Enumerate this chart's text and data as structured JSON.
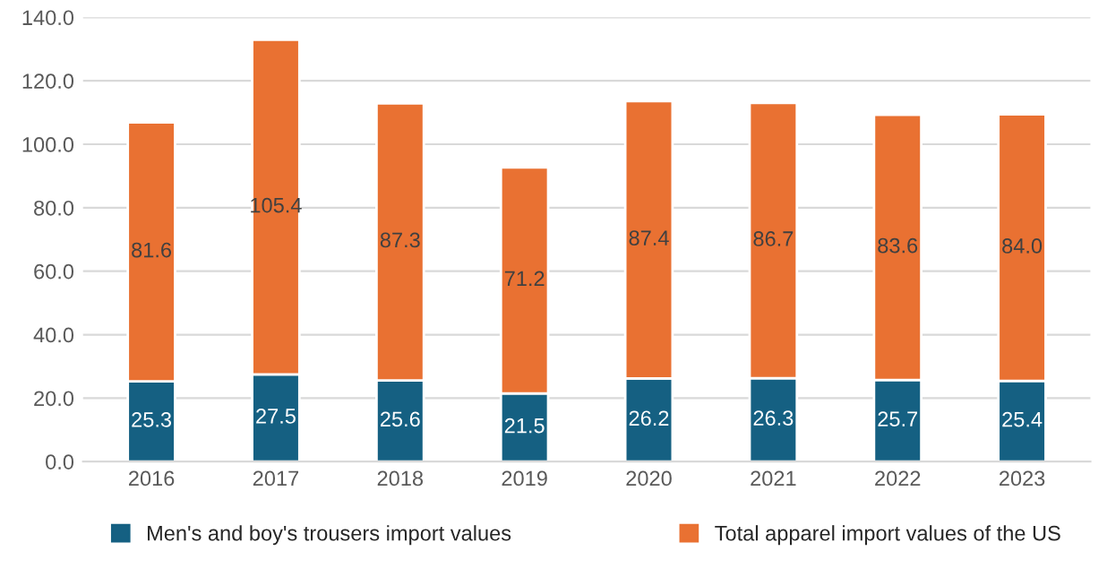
{
  "chart_data": {
    "type": "bar",
    "stacked": true,
    "categories": [
      "2016",
      "2017",
      "2018",
      "2019",
      "2020",
      "2021",
      "2022",
      "2023"
    ],
    "series": [
      {
        "name": "Men's and boy's trousers import values",
        "color": "#156082",
        "values": [
          25.3,
          27.5,
          25.6,
          21.5,
          26.2,
          26.3,
          25.7,
          25.4
        ],
        "value_labels": [
          "25.3",
          "27.5",
          "25.6",
          "21.5",
          "26.2",
          "26.3",
          "25.7",
          "25.4"
        ]
      },
      {
        "name": "Total apparel import values of the US",
        "color": "#e97132",
        "values": [
          81.6,
          105.4,
          87.3,
          71.2,
          87.4,
          86.7,
          83.6,
          84.0
        ],
        "value_labels": [
          "81.6",
          "105.4",
          "87.3",
          "71.2",
          "87.4",
          "86.7",
          "83.6",
          "84.0"
        ]
      }
    ],
    "ylim": [
      0,
      140
    ],
    "yticks": [
      {
        "value": 0,
        "label": "0.0"
      },
      {
        "value": 20,
        "label": "20.0"
      },
      {
        "value": 40,
        "label": "40.0"
      },
      {
        "value": 60,
        "label": "60.0"
      },
      {
        "value": 80,
        "label": "80.0"
      },
      {
        "value": 100,
        "label": "100.0"
      },
      {
        "value": 120,
        "label": "120.0"
      },
      {
        "value": 140,
        "label": "140.0"
      }
    ],
    "grid": "y",
    "legend": "bottom"
  }
}
